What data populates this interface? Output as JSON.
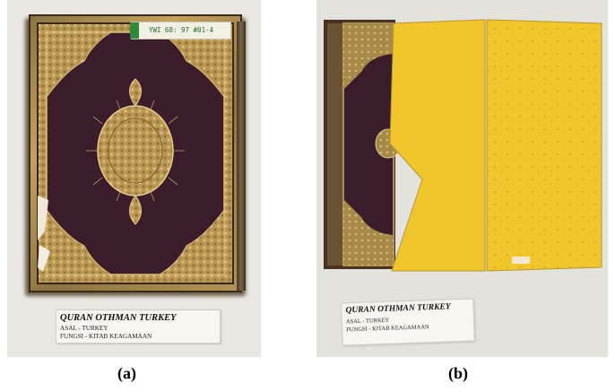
{
  "figure": {
    "panels": [
      {
        "id": "a",
        "subcaption": "(a)",
        "accession_sticker": "YWI 68: 97 #01-4",
        "card": {
          "title": "QURAN OTHMAN TURKEY",
          "lines": [
            "ASAL      - TURKEY",
            "FUNGSI  - KITAB KEAGAMAAN"
          ]
        }
      },
      {
        "id": "b",
        "subcaption": "(b)",
        "card": {
          "title": "QURAN OTHMAN TURKEY",
          "lines": [
            "ASAL      - TURKEY",
            "FUNGSI  - KITAB KEAGAMAAN"
          ]
        }
      }
    ]
  },
  "colors": {
    "leather": "#3b1e2c",
    "gold": "#c7a85a",
    "yellow_page": "#f1c62b",
    "background": "#e9e7e2"
  }
}
